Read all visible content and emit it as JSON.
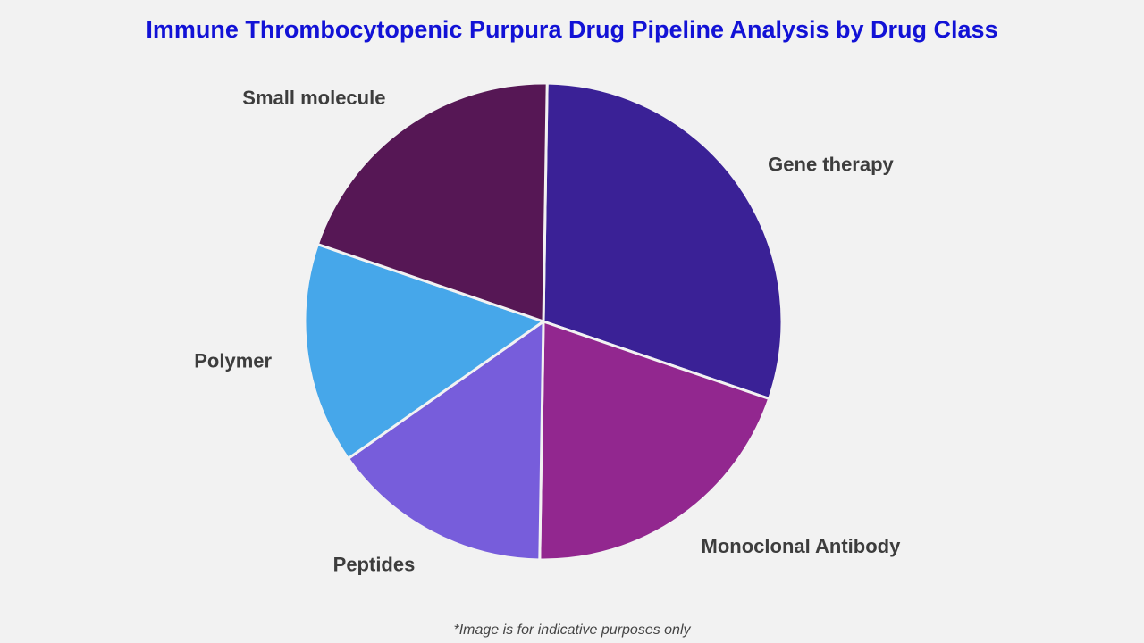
{
  "chart_data": {
    "type": "pie",
    "title": "Immune Thrombocytopenic Purpura Drug Pipeline Analysis by Drug Class",
    "slices": [
      {
        "label": "Gene therapy",
        "value": 30,
        "color": "#3a2196"
      },
      {
        "label": "Monoclonal Antibody",
        "value": 20,
        "color": "#92278f"
      },
      {
        "label": "Peptides",
        "value": 15,
        "color": "#775ddb"
      },
      {
        "label": "Polymer",
        "value": 15,
        "color": "#46a7ea"
      },
      {
        "label": "Small molecule",
        "value": 20,
        "color": "#561755"
      }
    ],
    "start": "top",
    "direction": "clockwise",
    "legend": "none"
  },
  "footnote": "*Image is for indicative purposes only"
}
